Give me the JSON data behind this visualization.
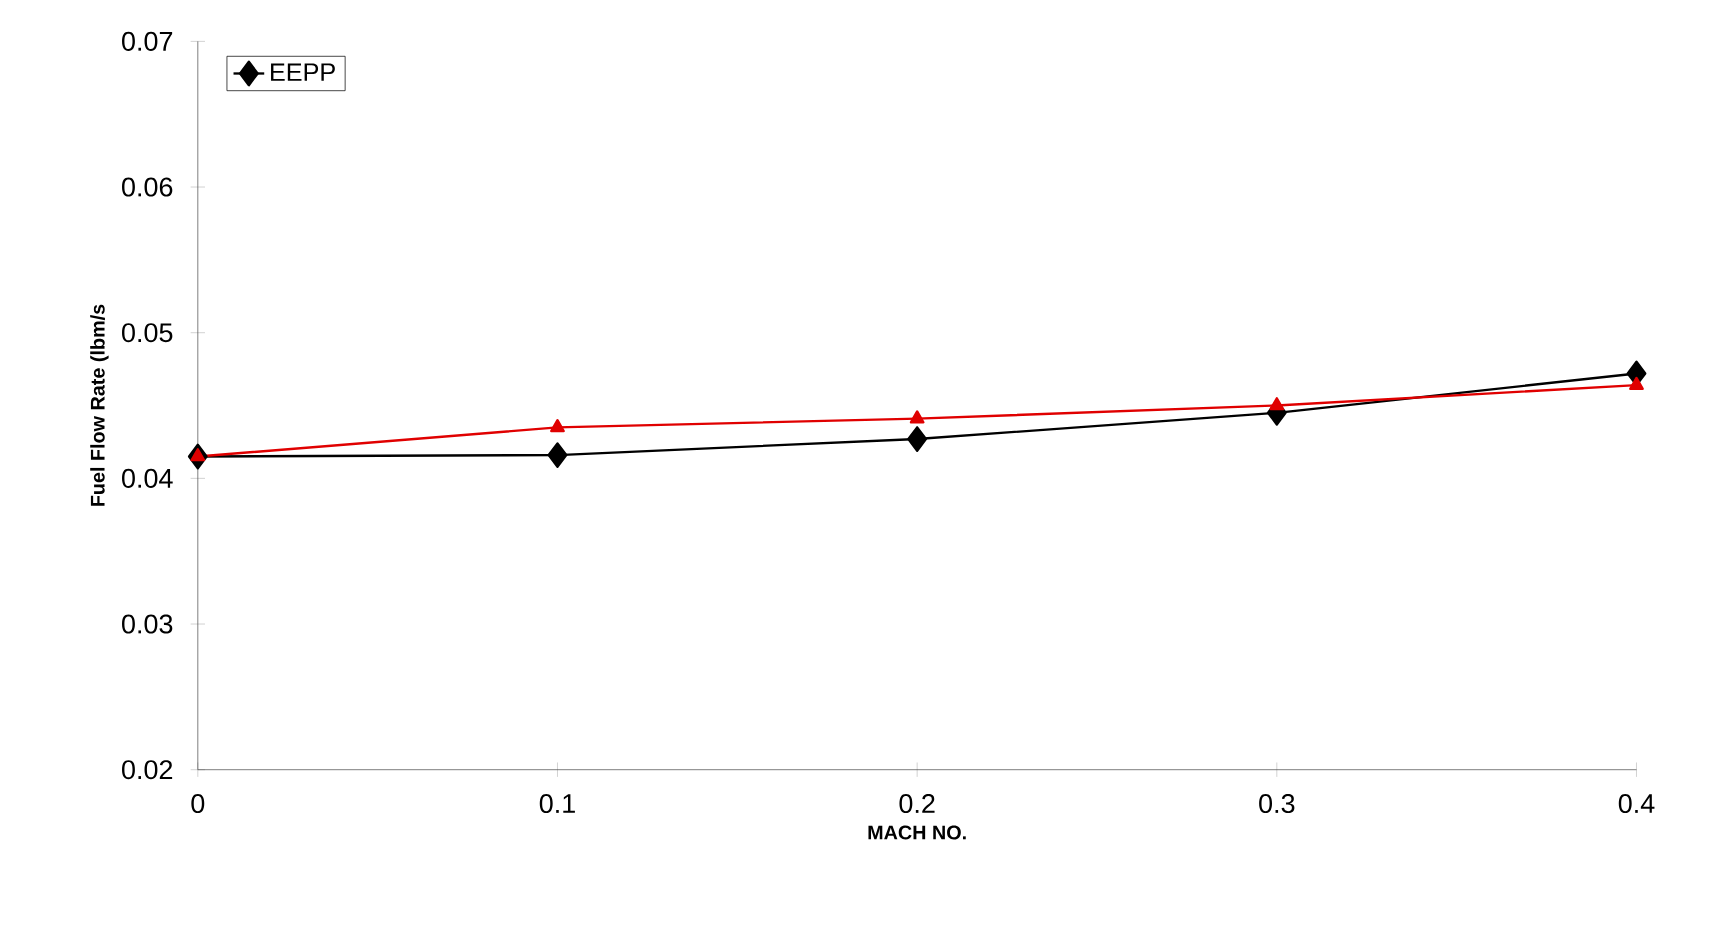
{
  "chart_data": {
    "type": "line",
    "xlabel": "MACH NO.",
    "ylabel": "Fuel Flow Rate (lbm/s",
    "x": [
      0,
      0.1,
      0.2,
      0.3,
      0.4
    ],
    "series": [
      {
        "name": "EEPP",
        "color": "#000000",
        "marker": "diamond",
        "values": [
          0.0415,
          0.0416,
          0.0427,
          0.0445,
          0.0472
        ]
      },
      {
        "color": "#e00000",
        "marker": "triangle",
        "values": [
          0.0415,
          0.0435,
          0.0441,
          0.045,
          0.0464
        ]
      }
    ],
    "xlim": [
      0,
      0.4
    ],
    "ylim": [
      0.02,
      0.07
    ],
    "xticks": [
      0,
      0.1,
      0.2,
      0.3,
      0.4
    ],
    "yticks": [
      0.02,
      0.03,
      0.04,
      0.05,
      0.06,
      0.07
    ],
    "legend": "top left",
    "grid": false
  }
}
